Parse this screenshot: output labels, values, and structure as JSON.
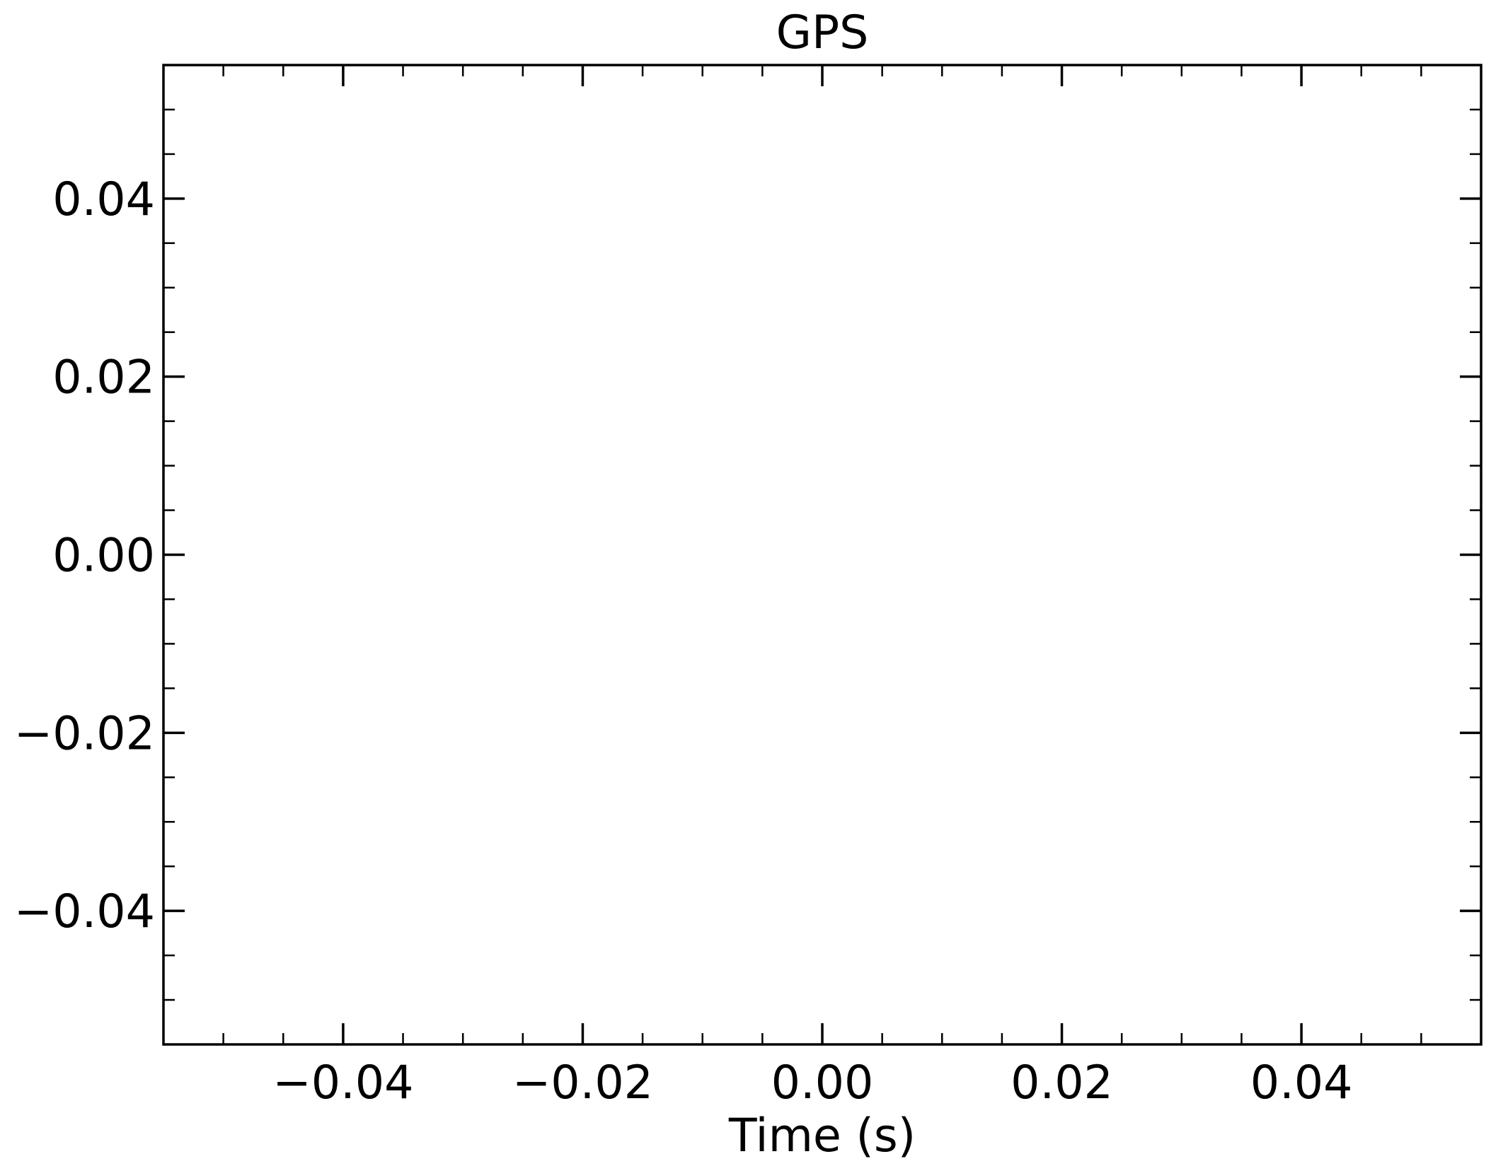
{
  "chart_data": {
    "type": "line",
    "title": "GPS",
    "xlabel": "Time (s)",
    "ylabel": "",
    "xlim": [
      -0.055,
      0.055
    ],
    "ylim": [
      -0.055,
      0.055
    ],
    "x_ticks": [
      -0.04,
      -0.02,
      0.0,
      0.02,
      0.04
    ],
    "x_tick_labels": [
      "−0.04",
      "−0.02",
      "0.00",
      "0.02",
      "0.04"
    ],
    "y_ticks": [
      -0.04,
      -0.02,
      0.0,
      0.02,
      0.04
    ],
    "y_tick_labels": [
      "−0.04",
      "−0.02",
      "0.00",
      "0.02",
      "0.04"
    ],
    "minor_tick_step": 0.005,
    "tick_direction": "in",
    "grid": false,
    "series": [],
    "colors": {
      "axes": "#000000",
      "background": "#ffffff"
    }
  }
}
